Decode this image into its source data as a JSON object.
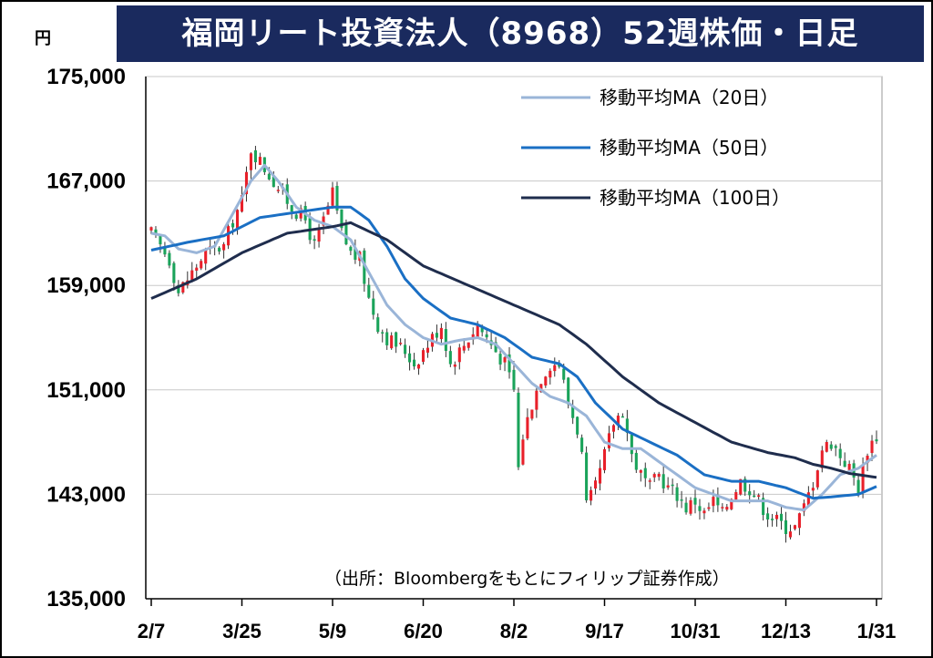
{
  "title": "福岡リート投資法人（8968）52週株価・日足",
  "unit_label": "円",
  "source_note": "（出所：Bloombergをもとにフィリップ証券作成）",
  "colors": {
    "title_bg": "#1a2a5e",
    "up_candle": "#e8202a",
    "down_candle": "#1aa35a",
    "ma20": "#9ab5d8",
    "ma50": "#1a6fc4",
    "ma100": "#1f2d4d",
    "grid": "#c8c8c8"
  },
  "chart_data": {
    "type": "line",
    "title": "福岡リート投資法人（8968）52週株価・日足",
    "xlabel": "",
    "ylabel": "円",
    "ylim": [
      135000,
      175000
    ],
    "yticks": [
      "175,000",
      "167,000",
      "159,000",
      "151,000",
      "143,000",
      "135,000"
    ],
    "ytick_values": [
      175000,
      167000,
      159000,
      151000,
      143000,
      135000
    ],
    "x_tick_labels": [
      "2/7",
      "3/25",
      "5/9",
      "6/20",
      "8/2",
      "9/17",
      "10/31",
      "12/13",
      "1/31"
    ],
    "x_tick_index": [
      0,
      20,
      40,
      60,
      80,
      100,
      120,
      140,
      160
    ],
    "grid": true,
    "legend_position": "top-right",
    "close_anchors": [
      [
        0,
        163000
      ],
      [
        4,
        161000
      ],
      [
        6,
        158500
      ],
      [
        9,
        160000
      ],
      [
        12,
        161500
      ],
      [
        16,
        162000
      ],
      [
        18,
        164000
      ],
      [
        20,
        165500
      ],
      [
        22,
        169500
      ],
      [
        25,
        168000
      ],
      [
        28,
        166500
      ],
      [
        31,
        165000
      ],
      [
        34,
        164000
      ],
      [
        36,
        162000
      ],
      [
        38,
        164000
      ],
      [
        40,
        166000
      ],
      [
        42,
        163000
      ],
      [
        44,
        161500
      ],
      [
        46,
        161000
      ],
      [
        48,
        158000
      ],
      [
        50,
        156000
      ],
      [
        52,
        155000
      ],
      [
        54,
        154500
      ],
      [
        56,
        154000
      ],
      [
        58,
        153000
      ],
      [
        60,
        154000
      ],
      [
        62,
        155000
      ],
      [
        64,
        156000
      ],
      [
        66,
        153000
      ],
      [
        68,
        154000
      ],
      [
        70,
        155000
      ],
      [
        72,
        156000
      ],
      [
        74,
        155000
      ],
      [
        76,
        154000
      ],
      [
        78,
        153000
      ],
      [
        80,
        151000
      ],
      [
        81,
        145000
      ],
      [
        82,
        147500
      ],
      [
        84,
        150000
      ],
      [
        86,
        152000
      ],
      [
        88,
        153000
      ],
      [
        90,
        153000
      ],
      [
        92,
        150000
      ],
      [
        94,
        148000
      ],
      [
        95,
        146000
      ],
      [
        96,
        142000
      ],
      [
        98,
        143500
      ],
      [
        100,
        146000
      ],
      [
        102,
        148500
      ],
      [
        104,
        149500
      ],
      [
        106,
        146000
      ],
      [
        108,
        144500
      ],
      [
        110,
        143500
      ],
      [
        112,
        144500
      ],
      [
        114,
        143500
      ],
      [
        116,
        143000
      ],
      [
        118,
        142000
      ],
      [
        120,
        142500
      ],
      [
        122,
        141500
      ],
      [
        124,
        142500
      ],
      [
        126,
        141500
      ],
      [
        128,
        143000
      ],
      [
        130,
        144000
      ],
      [
        132,
        143500
      ],
      [
        134,
        142500
      ],
      [
        136,
        141500
      ],
      [
        138,
        141000
      ],
      [
        140,
        140500
      ],
      [
        142,
        140500
      ],
      [
        144,
        142000
      ],
      [
        146,
        144000
      ],
      [
        148,
        146500
      ],
      [
        150,
        147000
      ],
      [
        152,
        146000
      ],
      [
        154,
        145000
      ],
      [
        156,
        143500
      ],
      [
        158,
        146500
      ],
      [
        160,
        147500
      ]
    ],
    "series": [
      {
        "name": "移動平均MA（20日）",
        "values": [
          [
            0,
            163000
          ],
          [
            3,
            162800
          ],
          [
            6,
            161800
          ],
          [
            10,
            161500
          ],
          [
            14,
            162000
          ],
          [
            18,
            164500
          ],
          [
            22,
            167000
          ],
          [
            25,
            168200
          ],
          [
            28,
            167000
          ],
          [
            32,
            165000
          ],
          [
            36,
            164000
          ],
          [
            40,
            163500
          ],
          [
            44,
            162500
          ],
          [
            48,
            160000
          ],
          [
            52,
            157500
          ],
          [
            56,
            156000
          ],
          [
            60,
            155000
          ],
          [
            64,
            154500
          ],
          [
            68,
            154800
          ],
          [
            72,
            155000
          ],
          [
            76,
            154500
          ],
          [
            80,
            153000
          ],
          [
            84,
            151500
          ],
          [
            88,
            150500
          ],
          [
            92,
            150000
          ],
          [
            96,
            149000
          ],
          [
            100,
            147000
          ],
          [
            104,
            146500
          ],
          [
            108,
            146500
          ],
          [
            112,
            145500
          ],
          [
            116,
            144500
          ],
          [
            120,
            143500
          ],
          [
            124,
            143000
          ],
          [
            128,
            142500
          ],
          [
            132,
            142500
          ],
          [
            136,
            142500
          ],
          [
            140,
            142000
          ],
          [
            144,
            141800
          ],
          [
            148,
            143000
          ],
          [
            152,
            144500
          ],
          [
            156,
            145000
          ],
          [
            160,
            146000
          ]
        ]
      },
      {
        "name": "移動平均MA（50日）",
        "values": [
          [
            0,
            161700
          ],
          [
            8,
            162300
          ],
          [
            16,
            162800
          ],
          [
            24,
            164200
          ],
          [
            32,
            164600
          ],
          [
            40,
            165000
          ],
          [
            44,
            165000
          ],
          [
            48,
            164000
          ],
          [
            52,
            162000
          ],
          [
            56,
            159500
          ],
          [
            60,
            158000
          ],
          [
            66,
            156500
          ],
          [
            72,
            156000
          ],
          [
            78,
            155000
          ],
          [
            84,
            153500
          ],
          [
            90,
            153000
          ],
          [
            94,
            152000
          ],
          [
            98,
            150000
          ],
          [
            104,
            148000
          ],
          [
            110,
            147000
          ],
          [
            116,
            146000
          ],
          [
            122,
            144500
          ],
          [
            128,
            144000
          ],
          [
            134,
            144000
          ],
          [
            140,
            143500
          ],
          [
            146,
            142700
          ],
          [
            150,
            142800
          ],
          [
            156,
            143000
          ],
          [
            160,
            143600
          ]
        ]
      },
      {
        "name": "移動平均MA（100日）",
        "values": [
          [
            0,
            158000
          ],
          [
            10,
            159500
          ],
          [
            20,
            161500
          ],
          [
            30,
            163000
          ],
          [
            40,
            163500
          ],
          [
            44,
            163800
          ],
          [
            52,
            162500
          ],
          [
            60,
            160500
          ],
          [
            70,
            159000
          ],
          [
            80,
            157500
          ],
          [
            90,
            156000
          ],
          [
            96,
            154500
          ],
          [
            104,
            152000
          ],
          [
            112,
            150000
          ],
          [
            120,
            148500
          ],
          [
            128,
            147000
          ],
          [
            136,
            146200
          ],
          [
            142,
            145800
          ],
          [
            146,
            145300
          ],
          [
            150,
            145000
          ],
          [
            154,
            144600
          ],
          [
            160,
            144300
          ]
        ]
      }
    ]
  }
}
